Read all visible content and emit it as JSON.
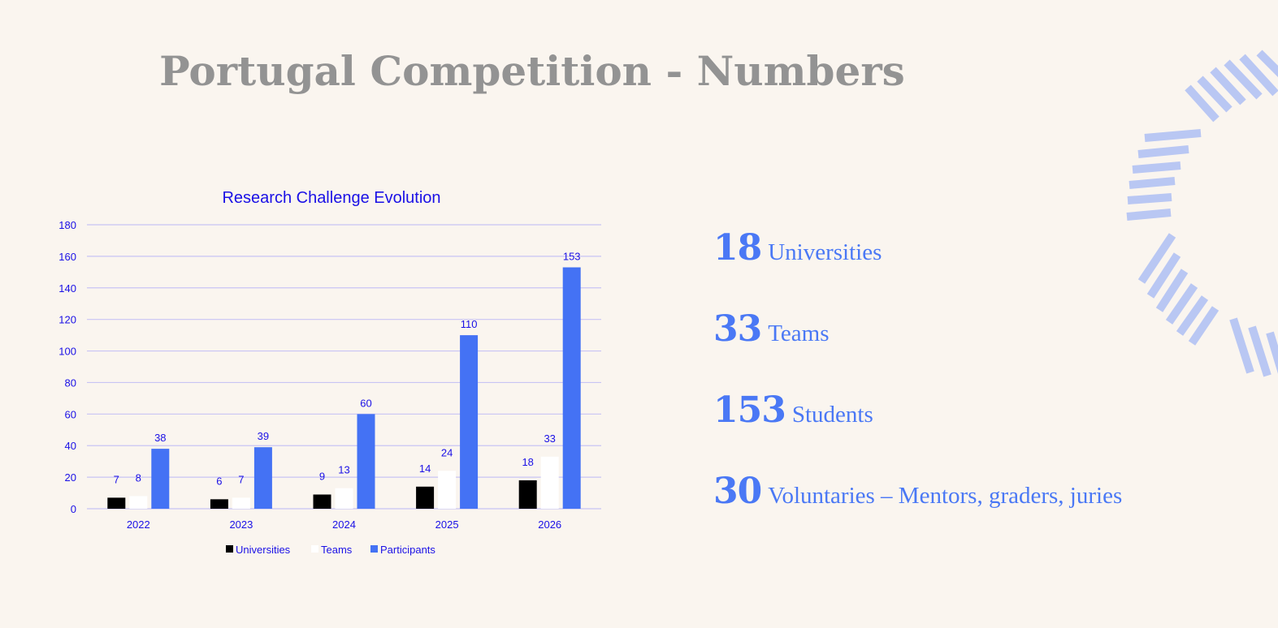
{
  "title": "Portugal Competition - Numbers",
  "stats": [
    {
      "value": "18",
      "label": "Universities"
    },
    {
      "value": "33",
      "label": "Teams"
    },
    {
      "value": "153",
      "label": "Students"
    },
    {
      "value": "30",
      "label": "Voluntaries – Mentors, graders, juries"
    }
  ],
  "colors": {
    "accent": "#4472f4",
    "title": "#939393",
    "text": "#1a10e6",
    "deco": "#b9c7f3"
  },
  "chart_data": {
    "type": "bar",
    "title": "Research Challenge Evolution",
    "categories": [
      "2022",
      "2023",
      "2024",
      "2025",
      "2026"
    ],
    "series": [
      {
        "name": "Universities",
        "color": "#000000",
        "values": [
          7,
          6,
          9,
          14,
          18
        ]
      },
      {
        "name": "Teams",
        "color": "#ffffff",
        "values": [
          8,
          7,
          13,
          24,
          33
        ]
      },
      {
        "name": "Participants",
        "color": "#4472f4",
        "values": [
          38,
          39,
          60,
          110,
          153
        ]
      }
    ],
    "ylim": [
      0,
      180
    ],
    "yticks": [
      0,
      20,
      40,
      60,
      80,
      100,
      120,
      140,
      160,
      180
    ],
    "xlabel": "",
    "ylabel": "",
    "grid": true,
    "legend": "bottom"
  }
}
